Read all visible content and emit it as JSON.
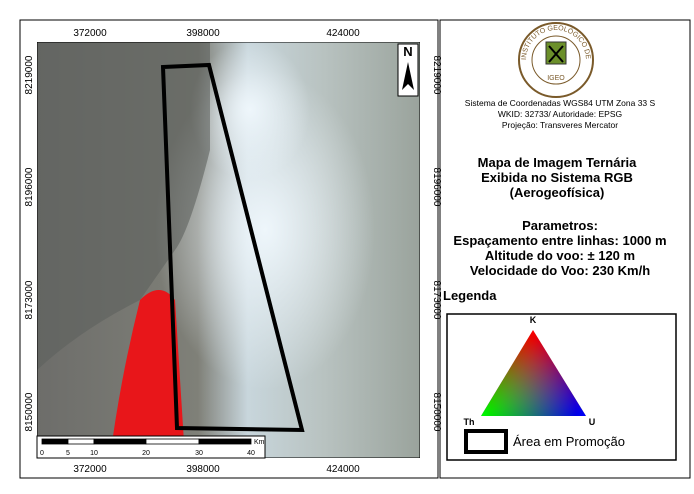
{
  "map": {
    "x_labels": [
      "372000",
      "398000",
      "424000"
    ],
    "y_labels": [
      "8219000",
      "8196000",
      "8173000",
      "8150000"
    ],
    "north": "N",
    "scale": {
      "ticks": [
        "0",
        "5",
        "10",
        "20",
        "30",
        "40"
      ],
      "unit": "Km"
    }
  },
  "logo": {
    "ring": "INSTITUTO GEOLÓGICO DE ANGOLA",
    "short": "IGEO"
  },
  "info": [
    "Sistema de Coordenadas WGS84 UTM Zona 33 S",
    "WKID: 32733/ Autoridade: EPSG",
    "Projeção: Transveres Mercator"
  ],
  "title": [
    "Mapa de Imagem Ternária",
    "Exibida no Sistema RGB",
    "(Aerogeofísica)"
  ],
  "parameters": {
    "heading": "Parametros:",
    "lines": [
      "Espaçamento entre linhas: 1000 m",
      "Altitude do voo: ± 120 m",
      "Velocidade do Voo: 230 Km/h"
    ]
  },
  "legend": {
    "title": "Legenda",
    "k": "K",
    "th": "Th",
    "u": "U",
    "area": "Área em Promoção"
  }
}
